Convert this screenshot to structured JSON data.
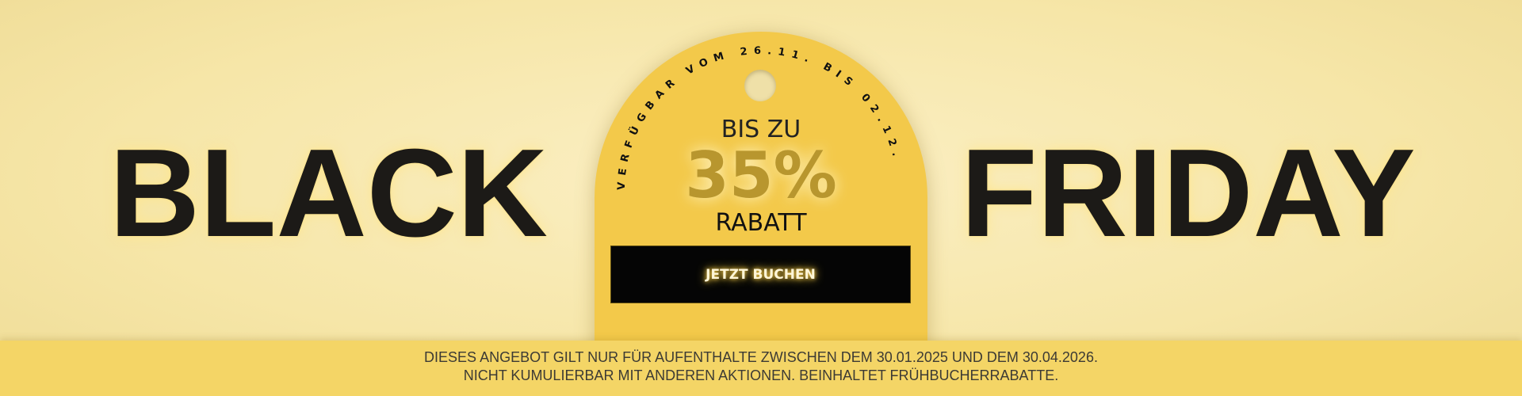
{
  "banner": {
    "word_left": "BLACK",
    "word_right": "FRIDAY",
    "availability": "VERFÜGBAR VOM 26.11. BIS 02.12.",
    "upto": "BIS ZU",
    "percent": "35%",
    "discount": "RABATT",
    "cta_label": "JETZT BUCHEN",
    "disclaimer_line1": "DIESES ANGEBOT GILT NUR FÜR AUFENTHALTE ZWISCHEN DEM 30.01.2025 UND DEM 30.04.2026.",
    "disclaimer_line2": "NICHT KUMULIERBAR MIT ANDEREN AKTIONEN. BEINHALTET FRÜHBUCHERRABATTE."
  },
  "colors": {
    "tag": "#f3c94a",
    "percent": "#b8962e",
    "band": "#f4d566",
    "button": "#050505"
  }
}
